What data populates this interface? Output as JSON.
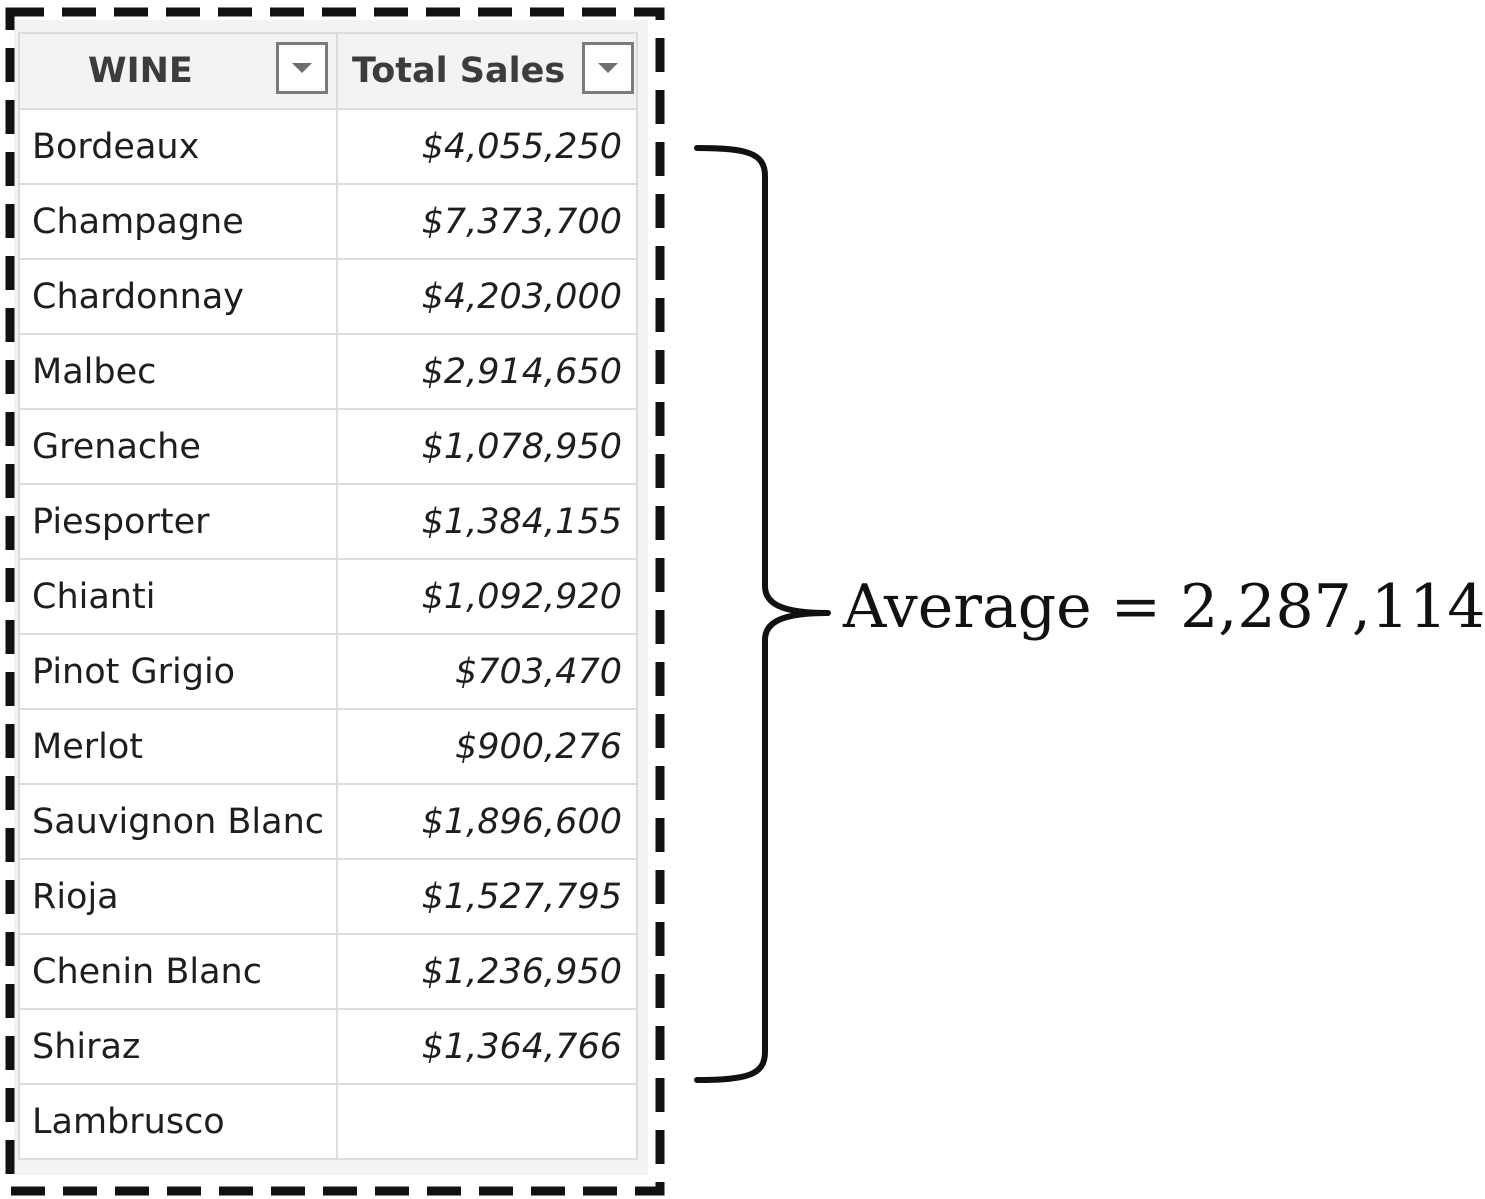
{
  "table": {
    "columns": [
      {
        "label": "WINE"
      },
      {
        "label": "Total Sales"
      }
    ],
    "rows": [
      {
        "wine": "Bordeaux",
        "sales": "$4,055,250"
      },
      {
        "wine": "Champagne",
        "sales": "$7,373,700"
      },
      {
        "wine": "Chardonnay",
        "sales": "$4,203,000"
      },
      {
        "wine": "Malbec",
        "sales": "$2,914,650"
      },
      {
        "wine": "Grenache",
        "sales": "$1,078,950"
      },
      {
        "wine": "Piesporter",
        "sales": "$1,384,155"
      },
      {
        "wine": "Chianti",
        "sales": "$1,092,920"
      },
      {
        "wine": "Pinot Grigio",
        "sales": "$703,470"
      },
      {
        "wine": "Merlot",
        "sales": "$900,276"
      },
      {
        "wine": "Sauvignon Blanc",
        "sales": "$1,896,600"
      },
      {
        "wine": "Rioja",
        "sales": "$1,527,795"
      },
      {
        "wine": "Chenin Blanc",
        "sales": "$1,236,950"
      },
      {
        "wine": "Shiraz",
        "sales": "$1,364,766"
      },
      {
        "wine": "Lambrusco",
        "sales": ""
      }
    ]
  },
  "annotation": {
    "average_text": "Average = 2,287,114"
  },
  "icons": {
    "filter": "dropdown-arrow-icon",
    "brace": "right-curly-brace"
  },
  "colors": {
    "header_bg": "#f3f3f3",
    "grid_line": "#dcdcdc",
    "dashed_border": "#111111",
    "text": "#1e1e1e"
  }
}
